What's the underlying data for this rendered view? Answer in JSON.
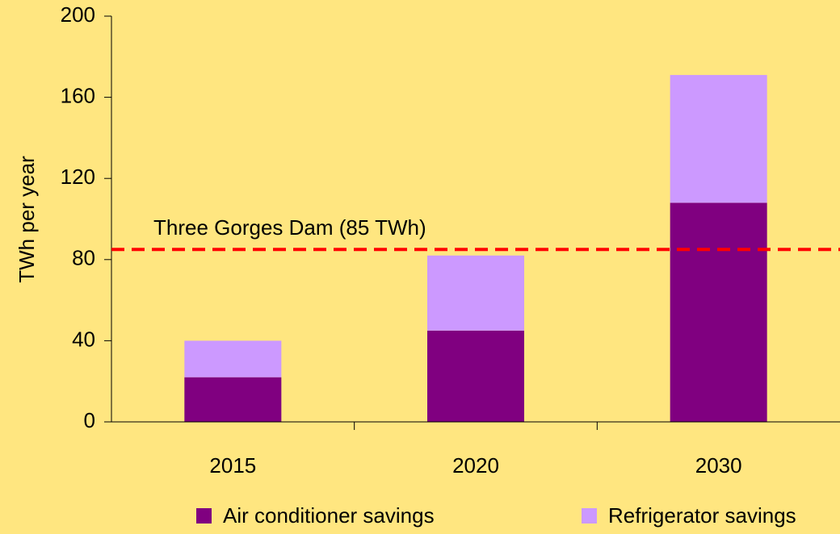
{
  "chart_data": {
    "type": "stacked_bar",
    "y_label": "TWh per year",
    "categories": [
      "2015",
      "2020",
      "2030"
    ],
    "series": [
      {
        "name": "Air conditioner savings",
        "color": "#800080",
        "values": [
          22,
          45,
          108
        ]
      },
      {
        "name": "Refrigerator savings",
        "color": "#CC99FF",
        "values": [
          18,
          37,
          63
        ]
      }
    ],
    "ylim": [
      0,
      200
    ],
    "yticks": [
      0,
      40,
      80,
      120,
      160,
      200
    ],
    "reference_line": {
      "value": 85,
      "label": "Three Gorges Dam (85 TWh)",
      "color": "#FF0000"
    },
    "legend": "bottom"
  }
}
